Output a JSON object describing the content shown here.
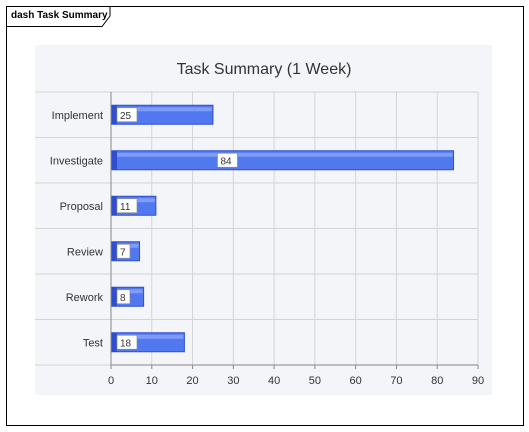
{
  "diagram": {
    "tab_label": "dash Task Summary"
  },
  "colors": {
    "plot_bg": "#f4f5f8",
    "bar_fill": "#5278f0",
    "bar_dark": "#2f4fd0",
    "bar_light": "#7f9cf7",
    "grid": "#d4d4d4",
    "label_box": "#ffffff"
  },
  "chart_data": {
    "type": "bar",
    "orientation": "horizontal",
    "title": "Task Summary (1 Week)",
    "categories": [
      "Implement",
      "Investigate",
      "Proposal",
      "Review",
      "Rework",
      "Test"
    ],
    "values": [
      25,
      84,
      11,
      7,
      8,
      18
    ],
    "value_labels": [
      "25",
      "84",
      "11",
      "7",
      "8",
      "18"
    ],
    "xlim": [
      0,
      90
    ],
    "xticks": [
      "0",
      "10",
      "20",
      "30",
      "40",
      "50",
      "60",
      "70",
      "80",
      "90"
    ],
    "grid": true,
    "legend": "none"
  }
}
